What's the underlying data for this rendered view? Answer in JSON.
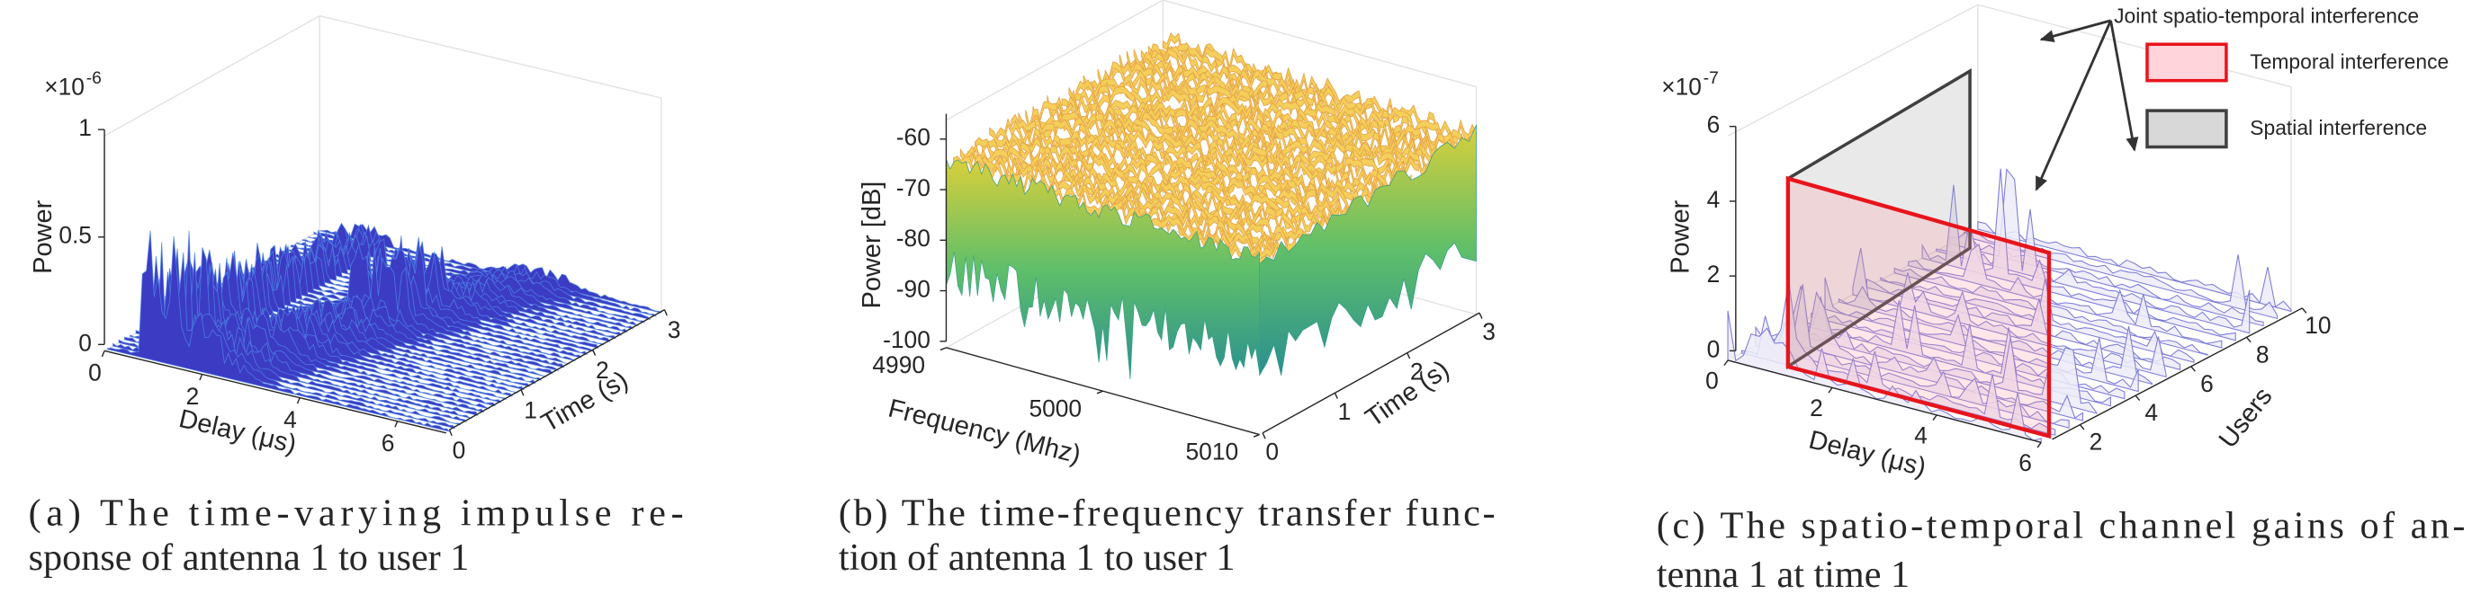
{
  "panels": [
    {
      "exponent": {
        "base": "×10",
        "power": "-6"
      },
      "axes": {
        "z": {
          "label": "Power",
          "lim": [
            0,
            1
          ],
          "ticks": [
            0,
            0.5,
            1
          ]
        },
        "x": {
          "label": "Delay (μs)",
          "lim": [
            0,
            7
          ],
          "ticks": [
            0,
            2,
            4,
            6
          ]
        },
        "y": {
          "label": "Time (s)",
          "lim": [
            0,
            3
          ],
          "ticks": [
            0,
            1,
            2,
            3
          ]
        }
      },
      "caption": [
        "(a) The time-varying impulse re-",
        "sponse of antenna 1 to user 1"
      ]
    },
    {
      "axes": {
        "z": {
          "label": "Power [dB]",
          "lim": [
            -100,
            -55
          ],
          "ticks": [
            -100,
            -90,
            -80,
            -70,
            -60
          ]
        },
        "x": {
          "label": "Frequency (Mhz)",
          "lim": [
            4990,
            5010
          ],
          "ticks": [
            4990,
            5000,
            5010
          ]
        },
        "y": {
          "label": "Time (s)",
          "lim": [
            0,
            3
          ],
          "ticks": [
            0,
            1,
            2,
            3
          ]
        }
      },
      "caption": [
        "(b) The time-frequency transfer func-",
        "tion of antenna 1 to user 1"
      ]
    },
    {
      "exponent": {
        "base": "×10",
        "power": "-7"
      },
      "axes": {
        "z": {
          "label": "Power",
          "lim": [
            0,
            6
          ],
          "ticks": [
            0,
            2,
            4,
            6
          ]
        },
        "x": {
          "label": "Delay (μs)",
          "lim": [
            0,
            6
          ],
          "ticks": [
            0,
            2,
            4,
            6
          ]
        },
        "y": {
          "label": "Users",
          "lim": [
            1,
            10
          ],
          "ticks": [
            2,
            4,
            6,
            8,
            10
          ]
        }
      },
      "legend": [
        {
          "name": "Temporal interference",
          "color": "#e8141c"
        },
        {
          "name": "Spatial interference",
          "color": "#404040"
        }
      ],
      "annotation": "Joint spatio-temporal interference",
      "caption": [
        "(c) The spatio-temporal channel gains of an-",
        "tenna 1 at time 1"
      ]
    }
  ]
}
